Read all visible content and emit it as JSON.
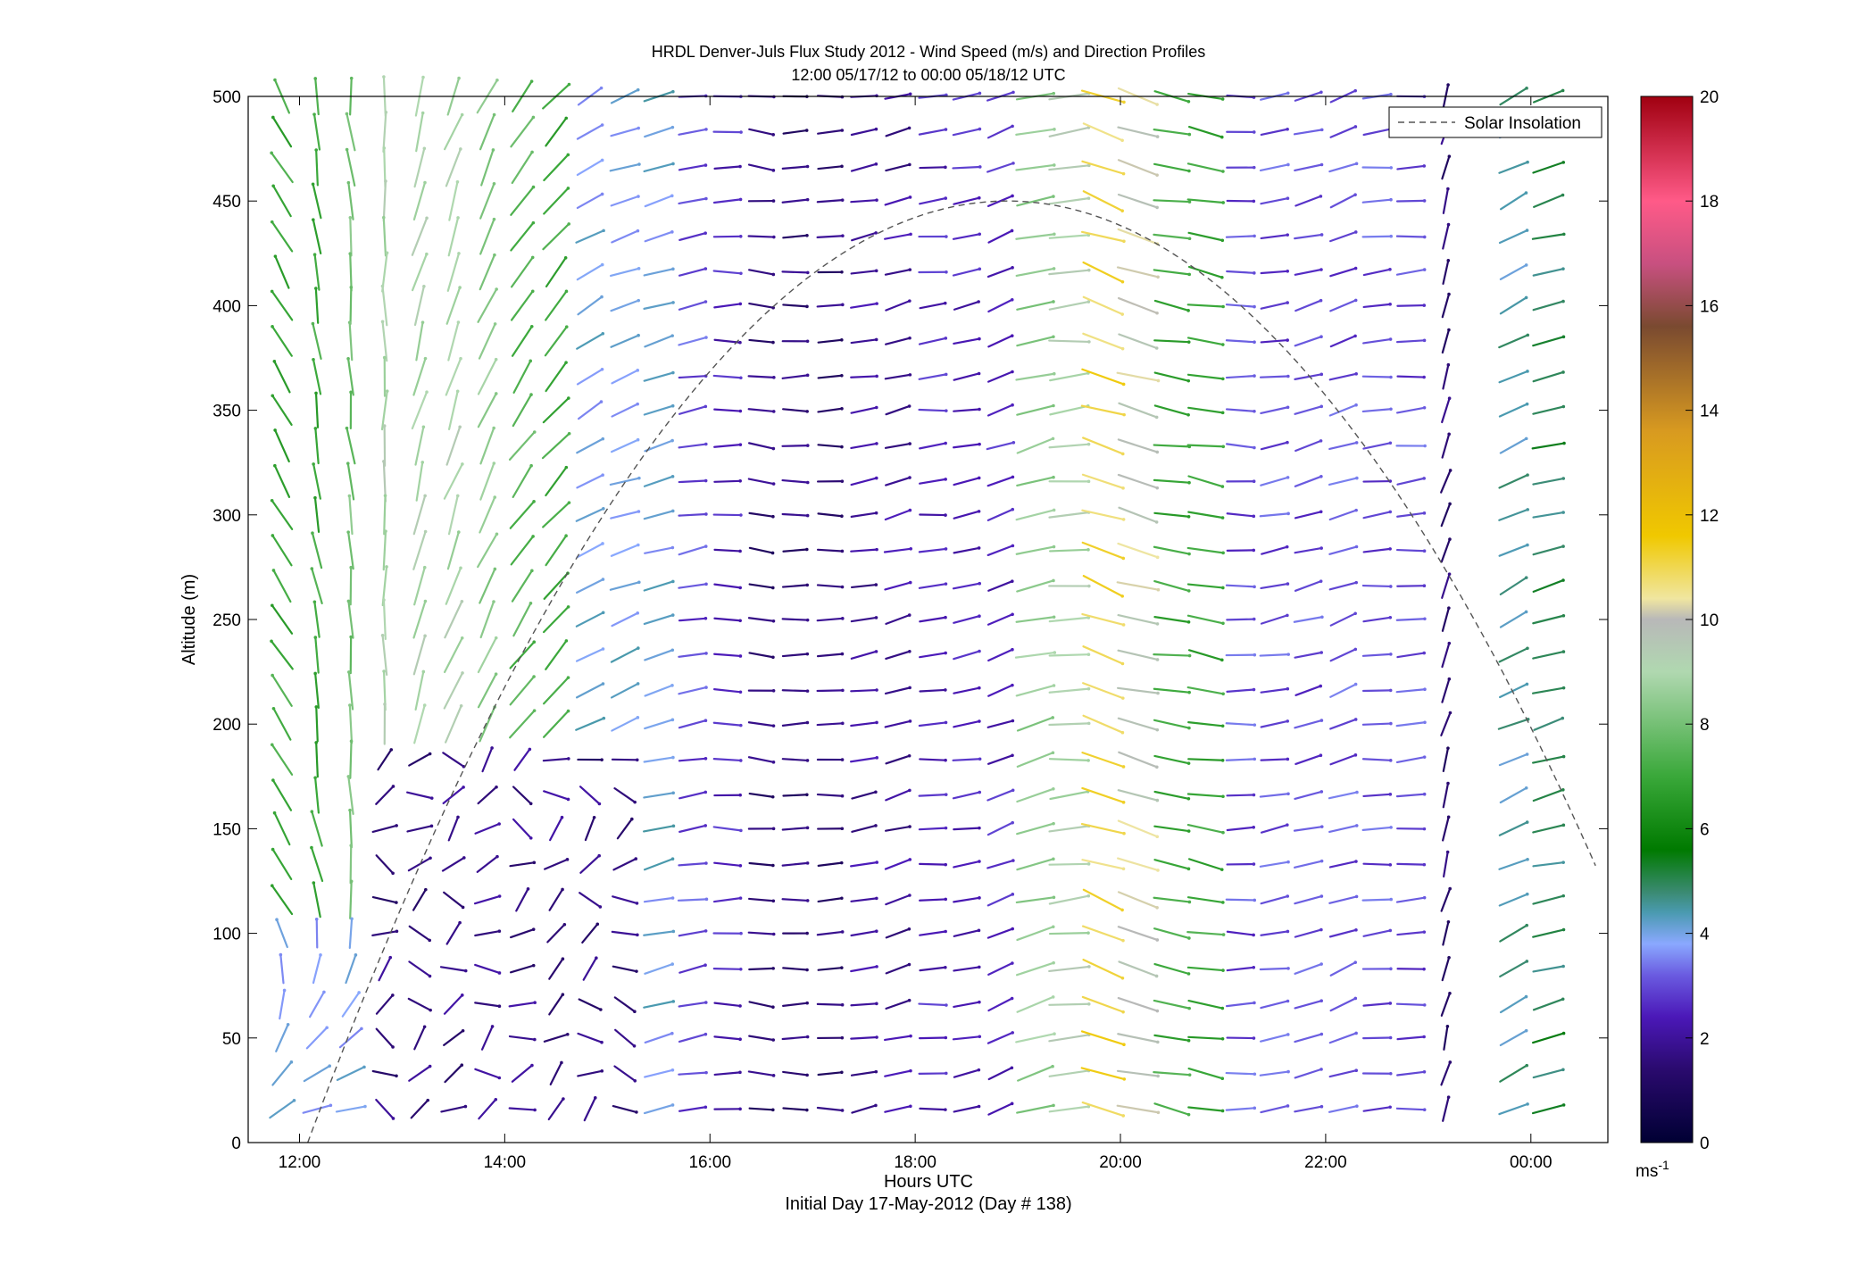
{
  "chart_data": {
    "type": "quiver",
    "title": "HRDL Denver-Juls Flux Study 2012 - Wind Speed (m/s) and Direction Profiles",
    "subtitle": "12:00 05/17/12 to 00:00 05/18/12  UTC",
    "xlabel": "Hours UTC",
    "xlabel2": "Initial Day 17-May-2012 (Day # 138)",
    "ylabel": "Altitude (m)",
    "xlim": [
      11.5,
      24.75
    ],
    "ylim": [
      0,
      500
    ],
    "xticks": [
      {
        "value": 12,
        "label": "12:00"
      },
      {
        "value": 14,
        "label": "14:00"
      },
      {
        "value": 16,
        "label": "16:00"
      },
      {
        "value": 18,
        "label": "18:00"
      },
      {
        "value": 20,
        "label": "20:00"
      },
      {
        "value": 22,
        "label": "22:00"
      },
      {
        "value": 24,
        "label": "00:00"
      }
    ],
    "yticks": [
      0,
      50,
      100,
      150,
      200,
      250,
      300,
      350,
      400,
      450,
      500
    ],
    "legend": {
      "placement": "top-right",
      "entries": [
        {
          "label": "Solar Insolation",
          "style": "dashed"
        }
      ]
    },
    "solar_insolation": {
      "start_hour": 12.08,
      "peak_hour": 18.9,
      "peak_altitude": 450,
      "end_hour": 24.67,
      "end_altitude": 110
    },
    "colorbar": {
      "min": 0,
      "max": 20,
      "ticks": [
        0,
        2,
        4,
        6,
        8,
        10,
        12,
        14,
        16,
        18,
        20
      ],
      "unit": "ms",
      "unit_exp": "-1"
    },
    "profile_times": [
      11.83,
      12.17,
      12.5,
      12.83,
      13.17,
      13.5,
      13.83,
      14.17,
      14.5,
      14.83,
      15.17,
      15.5,
      15.83,
      16.17,
      16.5,
      16.83,
      17.17,
      17.5,
      17.83,
      18.17,
      18.5,
      18.83,
      19.17,
      19.5,
      19.83,
      20.17,
      20.5,
      20.83,
      21.17,
      21.5,
      21.83,
      22.17,
      22.5,
      22.83,
      23.17,
      23.5,
      23.83,
      24.17
    ],
    "altitudes": [
      500,
      483,
      466,
      450,
      433,
      416,
      400,
      383,
      366,
      350,
      333,
      316,
      300,
      283,
      266,
      250,
      233,
      216,
      200,
      183,
      166,
      150,
      133,
      116,
      100,
      83,
      66,
      50,
      33,
      16
    ],
    "profiles": [
      {
        "t": 11.83,
        "speed": 7.0,
        "dir_deg": 330
      },
      {
        "t": 12.17,
        "speed": 7.0,
        "dir_deg": 350
      },
      {
        "t": 12.5,
        "speed": 8.0,
        "dir_deg": 355
      },
      {
        "t": 12.83,
        "speed": 9.0,
        "dir_deg": 0
      },
      {
        "t": 13.17,
        "speed": 9.0,
        "dir_deg": 15
      },
      {
        "t": 13.5,
        "speed": 9.0,
        "dir_deg": 20
      },
      {
        "t": 13.83,
        "speed": 8.5,
        "dir_deg": 25
      },
      {
        "t": 14.17,
        "speed": 7.5,
        "dir_deg": 35
      },
      {
        "t": 14.5,
        "speed": 7.0,
        "dir_deg": 40
      },
      {
        "t": 14.83,
        "speed": 4.0,
        "dir_deg": 60
      },
      {
        "t": 15.17,
        "speed": 4.0,
        "dir_deg": 70
      },
      {
        "t": 15.5,
        "speed": 4.0,
        "dir_deg": 75
      },
      {
        "t": 15.83,
        "speed": 3.0,
        "dir_deg": 80
      },
      {
        "t": 16.17,
        "speed": 2.5,
        "dir_deg": 90
      },
      {
        "t": 16.5,
        "speed": 1.5,
        "dir_deg": 95
      },
      {
        "t": 16.83,
        "speed": 1.5,
        "dir_deg": 90
      },
      {
        "t": 17.17,
        "speed": 1.5,
        "dir_deg": 90
      },
      {
        "t": 17.5,
        "speed": 2.0,
        "dir_deg": 80
      },
      {
        "t": 17.83,
        "speed": 2.0,
        "dir_deg": 75
      },
      {
        "t": 18.17,
        "speed": 2.5,
        "dir_deg": 85
      },
      {
        "t": 18.5,
        "speed": 2.5,
        "dir_deg": 80
      },
      {
        "t": 18.83,
        "speed": 2.5,
        "dir_deg": 70
      },
      {
        "t": 19.17,
        "speed": 8.5,
        "dir_deg": 75
      },
      {
        "t": 19.5,
        "speed": 9.0,
        "dir_deg": 85
      },
      {
        "t": 19.83,
        "speed": 11.0,
        "dir_deg": 110
      },
      {
        "t": 20.17,
        "speed": 10.0,
        "dir_deg": 105
      },
      {
        "t": 20.5,
        "speed": 7.0,
        "dir_deg": 100
      },
      {
        "t": 20.83,
        "speed": 7.0,
        "dir_deg": 100
      },
      {
        "t": 21.17,
        "speed": 3.0,
        "dir_deg": 90
      },
      {
        "t": 21.5,
        "speed": 3.0,
        "dir_deg": 80
      },
      {
        "t": 21.83,
        "speed": 3.0,
        "dir_deg": 75
      },
      {
        "t": 22.17,
        "speed": 3.0,
        "dir_deg": 70
      },
      {
        "t": 22.5,
        "speed": 3.0,
        "dir_deg": 85
      },
      {
        "t": 22.83,
        "speed": 3.0,
        "dir_deg": 85
      },
      {
        "t": 23.17,
        "speed": 1.5,
        "dir_deg": 15
      },
      {
        "t": 23.5,
        "speed": 0.0,
        "dir_deg": 0
      },
      {
        "t": 23.83,
        "speed": 4.5,
        "dir_deg": 65
      },
      {
        "t": 24.17,
        "speed": 5.0,
        "dir_deg": 75
      }
    ]
  }
}
